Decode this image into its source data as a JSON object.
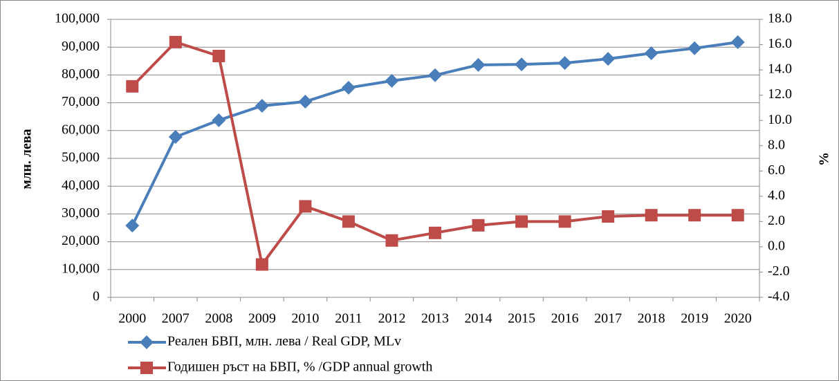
{
  "chart_data": {
    "type": "line",
    "y_label": "млн. лева",
    "y2_label": "%",
    "categories": [
      "2000",
      "2007",
      "2008",
      "2009",
      "2010",
      "2011",
      "2012",
      "2013",
      "2014",
      "2015",
      "2016",
      "2017",
      "2018",
      "2019",
      "2020"
    ],
    "series": [
      {
        "name": "Реален БВП, млн. лева /  Real GDP, MLv",
        "color": "#4a7ebb",
        "marker": "diamond",
        "values": [
          25800,
          57700,
          63700,
          68900,
          70400,
          75400,
          77900,
          79900,
          83600,
          83800,
          84300,
          85800,
          87800,
          89600,
          91800
        ]
      },
      {
        "name": "Годишен ръст на БВП, % /GDP annual growth",
        "color": "#be4b48",
        "marker": "square",
        "axis": "y2",
        "values": [
          12.7,
          16.2,
          15.1,
          -1.4,
          3.2,
          2.0,
          0.5,
          1.1,
          1.7,
          2.0,
          2.0,
          2.4,
          2.5,
          2.5,
          2.5
        ]
      }
    ],
    "ylim": [
      0,
      100000
    ],
    "yticks": [
      0,
      {
        "value": 10000,
        "label": "10,000"
      },
      {
        "value": 20000,
        "label": "20,000"
      },
      {
        "value": 30000,
        "label": "30,000"
      },
      {
        "value": 40000,
        "label": "40,000"
      },
      {
        "value": 50000,
        "label": "50,000"
      },
      {
        "value": 60000,
        "label": "60,000"
      },
      {
        "value": 70000,
        "label": "70,000"
      },
      {
        "value": 80000,
        "label": "80,000"
      },
      {
        "value": 90000,
        "label": "90,000"
      },
      {
        "value": 100000,
        "label": "100,000"
      }
    ],
    "y2lim": [
      -4,
      18
    ],
    "y2ticks": [
      {
        "value": -4,
        "label": "-4.0"
      },
      {
        "value": -2,
        "label": "-2.0"
      },
      {
        "value": 0,
        "label": "0.0"
      },
      {
        "value": 2,
        "label": "2.0"
      },
      {
        "value": 4,
        "label": "4.0"
      },
      {
        "value": 6,
        "label": "6.0"
      },
      {
        "value": 8,
        "label": "8.0"
      },
      {
        "value": 10,
        "label": "10.0"
      },
      {
        "value": 12,
        "label": "12.0"
      },
      {
        "value": 14,
        "label": "14.0"
      },
      {
        "value": 16,
        "label": "16.0"
      },
      {
        "value": 18,
        "label": "18.0"
      }
    ],
    "grid": true,
    "legend": "bottom-left"
  }
}
